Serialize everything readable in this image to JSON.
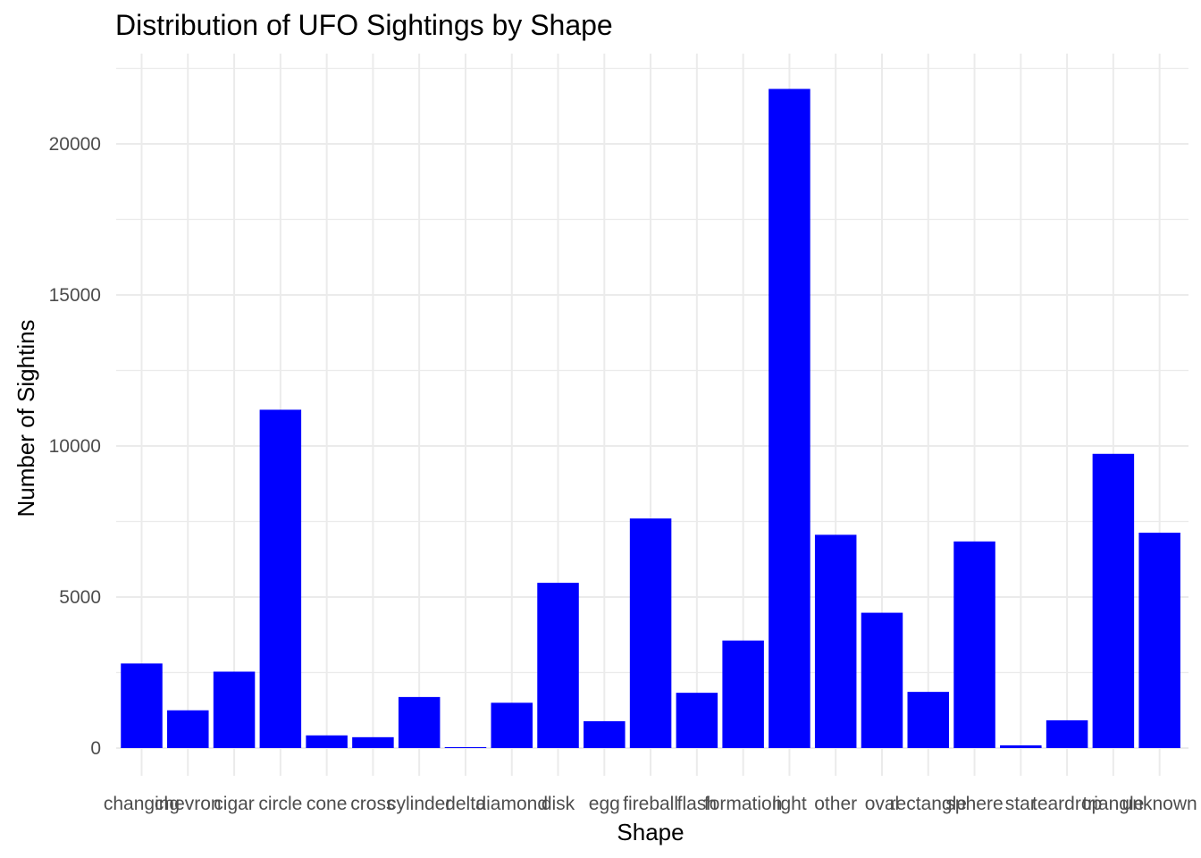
{
  "chart_data": {
    "type": "bar",
    "title": "Distribution of UFO Sightings by Shape",
    "xlabel": "Shape",
    "ylabel": "Number of Sightins",
    "categories": [
      "changing",
      "chevron",
      "cigar",
      "circle",
      "cone",
      "cross",
      "cylinder",
      "delta",
      "diamond",
      "disk",
      "egg",
      "fireball",
      "flash",
      "formation",
      "light",
      "other",
      "oval",
      "rectangle",
      "sphere",
      "star",
      "teardrop",
      "triangle",
      "unknown"
    ],
    "values": [
      2800,
      1250,
      2530,
      11200,
      420,
      360,
      1690,
      30,
      1500,
      5470,
      890,
      7600,
      1830,
      3560,
      21820,
      7060,
      4480,
      1860,
      6840,
      90,
      920,
      9740,
      7130
    ],
    "yticks": [
      0,
      5000,
      10000,
      15000,
      20000
    ],
    "ylim": [
      0,
      22500
    ],
    "grid": true,
    "bar_color": "#0000ff",
    "grid_color": "#ebebeb"
  }
}
